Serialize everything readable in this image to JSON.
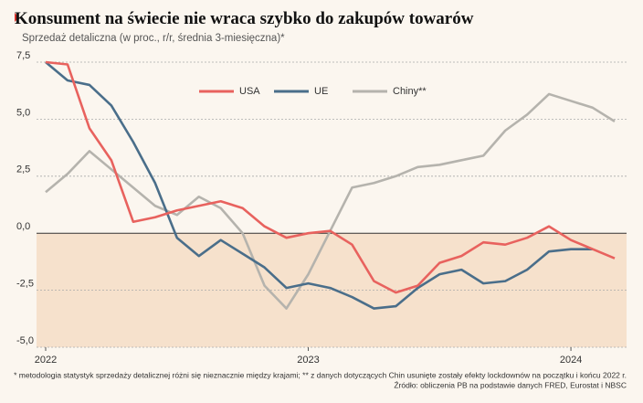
{
  "chart_data": {
    "type": "line",
    "title": "Konsument na świecie nie wraca szybko do zakupów towarów",
    "subtitle": "Sprzedaż detaliczna (w proc., r/r, średnia 3-miesięczna)*",
    "footnote": "* metodologia statystyk sprzedaży detalicznej różni się nieznacznie między krajami; ** z danych dotyczących Chin usunięte zostały efekty lockdownów na początku i końcu 2022 r.",
    "source": "Źródło: obliczenia PB na podstawie danych FRED, Eurostat i NBSC",
    "categories": [
      "2022",
      null,
      null,
      null,
      null,
      null,
      null,
      null,
      null,
      null,
      null,
      null,
      "2023",
      null,
      null,
      null,
      null,
      null,
      null,
      null,
      null,
      null,
      null,
      null,
      "2024",
      null,
      null
    ],
    "series": [
      {
        "name": "USA",
        "color": "#e8625e",
        "values": [
          7.5,
          7.4,
          4.6,
          3.2,
          0.5,
          0.7,
          1.0,
          1.2,
          1.4,
          1.1,
          0.3,
          -0.2,
          0.0,
          0.1,
          -0.5,
          -2.1,
          -2.6,
          -2.3,
          -1.3,
          -1.0,
          -0.4,
          -0.5,
          -0.2,
          0.3,
          -0.3,
          -0.7,
          -1.1
        ]
      },
      {
        "name": "UE",
        "color": "#4a6e8a",
        "values": [
          7.5,
          6.7,
          6.5,
          5.6,
          4.0,
          2.2,
          -0.2,
          -1.0,
          -0.3,
          -0.9,
          -1.5,
          -2.4,
          -2.2,
          -2.4,
          -2.8,
          -3.3,
          -3.2,
          -2.4,
          -1.8,
          -1.6,
          -2.2,
          -2.1,
          -1.6,
          -0.8,
          -0.7,
          -0.7,
          null
        ]
      },
      {
        "name": "Chiny**",
        "color": "#b5b3ad",
        "values": [
          1.8,
          2.6,
          3.6,
          2.8,
          2.0,
          1.2,
          0.8,
          1.6,
          1.1,
          0.0,
          -2.3,
          -3.3,
          -1.8,
          0.1,
          2.0,
          2.2,
          2.5,
          2.9,
          3.0,
          3.2,
          3.4,
          4.5,
          5.2,
          6.1,
          5.8,
          5.5,
          4.9
        ]
      }
    ],
    "ylim": [
      -5,
      7.5
    ],
    "yticks": [
      {
        "value": -5,
        "label": "-5,0"
      },
      {
        "value": -2.5,
        "label": "-2,5"
      },
      {
        "value": 0,
        "label": "0,0"
      },
      {
        "value": 2.5,
        "label": "2,5"
      },
      {
        "value": 5,
        "label": "5,0"
      },
      {
        "value": 7.5,
        "label": "7,5"
      }
    ],
    "grid": true,
    "shade_below_zero_color": "#f6e1cc"
  }
}
